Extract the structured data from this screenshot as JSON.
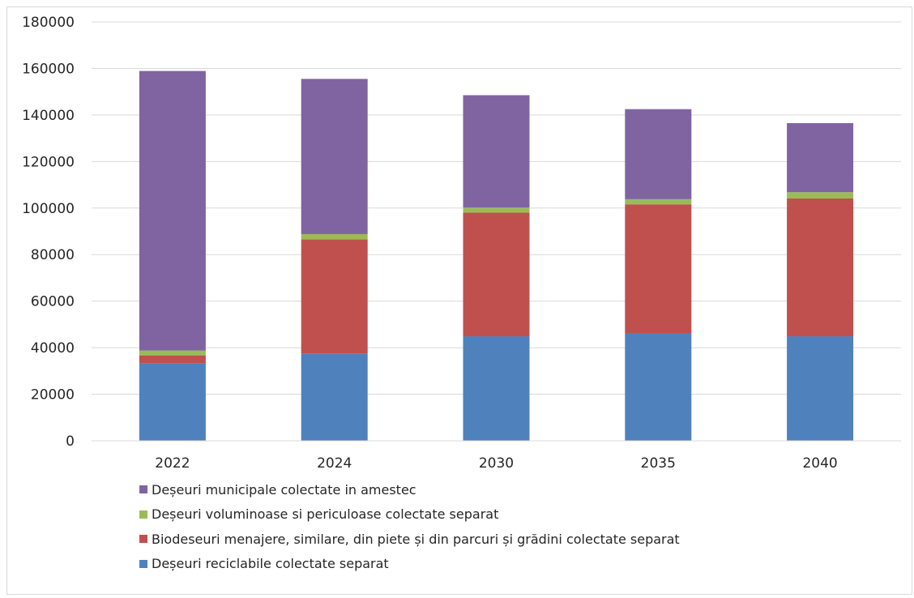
{
  "chart_data": {
    "type": "bar",
    "stacked": true,
    "categories": [
      "2022",
      "2024",
      "2030",
      "2035",
      "2040"
    ],
    "series": [
      {
        "name": "Deșeuri reciclabile colectate separat",
        "color": "#4f81bd",
        "values": [
          33300,
          37500,
          44900,
          46300,
          44900
        ]
      },
      {
        "name": "Biodeseuri menajere, similare, din piete și din parcuri și grădini colectate separat",
        "color": "#c0504d",
        "values": [
          3400,
          49000,
          53100,
          55300,
          59200
        ]
      },
      {
        "name": "Deșeuri voluminoase si periculoase colectate separat",
        "color": "#9bbb59",
        "values": [
          2100,
          2300,
          2200,
          2200,
          2700
        ]
      },
      {
        "name": "Deșeuri municipale colectate in amestec",
        "color": "#8064a2",
        "values": [
          120100,
          66700,
          48300,
          38700,
          29700
        ]
      }
    ],
    "ylim": [
      0,
      180000
    ],
    "yticks": [
      0,
      20000,
      40000,
      60000,
      80000,
      100000,
      120000,
      140000,
      160000,
      180000
    ],
    "grid": true,
    "legend_position": "bottom",
    "legend_order": [
      3,
      2,
      1,
      0
    ],
    "title": "",
    "xlabel": "",
    "ylabel": ""
  }
}
